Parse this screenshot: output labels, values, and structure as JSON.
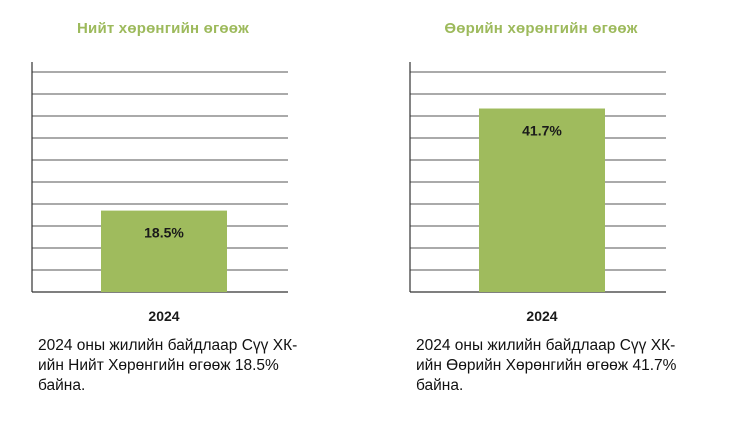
{
  "colors": {
    "bar": "#9fbb5d",
    "title": "#9dba5c",
    "grid": "#555555",
    "text": "#1a1a1a"
  },
  "chart_data": [
    {
      "type": "bar",
      "title": "Нийт хөрөнгийн өгөөж",
      "categories": [
        "2024"
      ],
      "values": [
        18.5
      ],
      "data_labels": [
        "18.5%"
      ],
      "ylim": [
        0,
        50
      ],
      "grid": true,
      "caption": "2024 оны жилийн байдлаар Сүү ХК-ийн Нийт Хөрөнгийн өгөөж 18.5% байна."
    },
    {
      "type": "bar",
      "title": "Өөрийн хөрөнгийн өгөөж",
      "categories": [
        "2024"
      ],
      "values": [
        41.7
      ],
      "data_labels": [
        "41.7%"
      ],
      "ylim": [
        0,
        50
      ],
      "grid": true,
      "caption": "2024 оны жилийн байдлаар Сүү ХК-ийн Өөрийн Хөрөнгийн өгөөж 41.7% байна."
    }
  ]
}
